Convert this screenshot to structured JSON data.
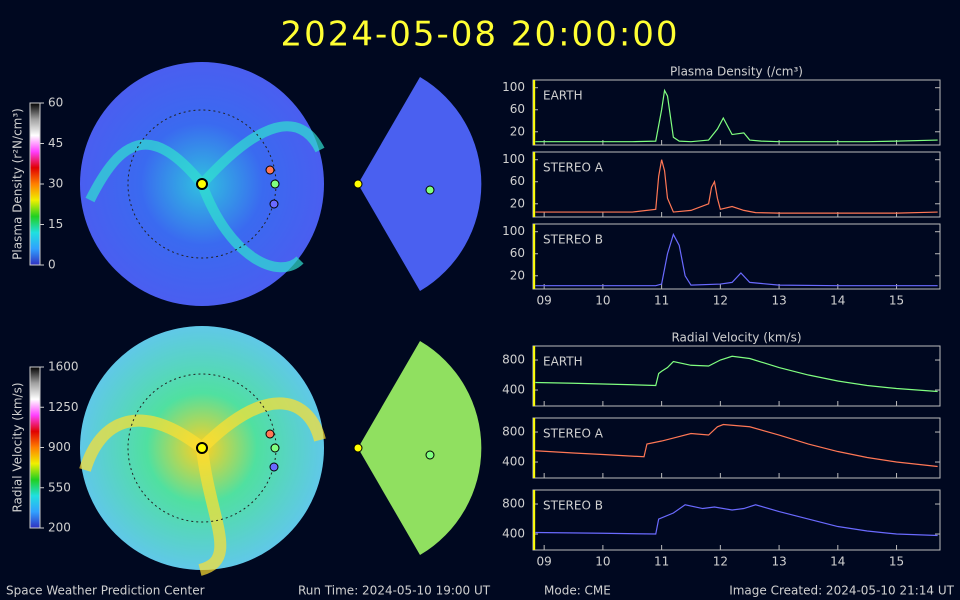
{
  "title": "2024-05-08  20:00:00",
  "footer": {
    "left": "Space Weather Prediction Center",
    "run_time": "Run Time: 2024-05-10 19:00 UT",
    "mode": "Mode: CME",
    "created": "Image Created: 2024-05-10 21:14 UT"
  },
  "colorbars": [
    {
      "label": "Plasma Density (r²N/cm³)",
      "lim": [
        0,
        60
      ],
      "ticks": [
        0,
        15,
        30,
        45,
        60
      ]
    },
    {
      "label": "Radial Velocity (km/s)",
      "lim": [
        200,
        1600
      ],
      "ticks": [
        200,
        550,
        900,
        1250,
        1600
      ]
    }
  ],
  "chart_data": [
    {
      "type": "line",
      "title": "Plasma Density (/cm³)",
      "xlim": [
        8.81,
        15.74
      ],
      "xticks": [
        {
          "value": 9,
          "label": "09"
        },
        10,
        11,
        12,
        13,
        14,
        15
      ],
      "marker_x": 8.83,
      "ylim": [
        -4,
        114
      ],
      "yticks": [
        20,
        60,
        100
      ],
      "series": [
        {
          "name": "EARTH",
          "color": "#80ff80",
          "x": [
            8.85,
            9.5,
            10,
            10.5,
            10.9,
            11.0,
            11.05,
            11.1,
            11.2,
            11.3,
            11.5,
            11.8,
            11.95,
            12.05,
            12.2,
            12.4,
            12.5,
            12.7,
            13,
            13.5,
            14,
            14.5,
            15,
            15.7
          ],
          "values": [
            2,
            2,
            2,
            2,
            3,
            60,
            95,
            85,
            10,
            3,
            2,
            5,
            25,
            45,
            15,
            18,
            5,
            3,
            2,
            2,
            2,
            2,
            3,
            5
          ]
        },
        {
          "name": "STEREO A",
          "color": "#ff7755",
          "x": [
            8.85,
            9.5,
            10,
            10.5,
            10.9,
            10.95,
            11.0,
            11.05,
            11.1,
            11.2,
            11.5,
            11.8,
            11.85,
            11.9,
            11.95,
            12.0,
            12.2,
            12.4,
            12.6,
            13,
            14,
            15,
            15.7
          ],
          "values": [
            5,
            5,
            5,
            5,
            10,
            70,
            100,
            80,
            30,
            5,
            8,
            20,
            50,
            60,
            30,
            10,
            15,
            8,
            4,
            3,
            3,
            3,
            5
          ]
        },
        {
          "name": "STEREO B",
          "color": "#6a6aff",
          "x": [
            8.85,
            10,
            10.9,
            11.0,
            11.1,
            11.2,
            11.3,
            11.4,
            11.5,
            12,
            12.2,
            12.35,
            12.5,
            13,
            14,
            15,
            15.7
          ],
          "values": [
            2,
            2,
            2,
            5,
            60,
            95,
            75,
            20,
            3,
            5,
            8,
            25,
            8,
            3,
            2,
            2,
            2
          ]
        }
      ]
    },
    {
      "type": "line",
      "title": "Radial Velocity (km/s)",
      "xlim": [
        8.81,
        15.74
      ],
      "xticks": [
        {
          "value": 9,
          "label": "09"
        },
        10,
        11,
        12,
        13,
        14,
        15
      ],
      "marker_x": 8.83,
      "ylim": [
        187,
        987
      ],
      "yticks": [
        400,
        800
      ],
      "series": [
        {
          "name": "EARTH",
          "color": "#80ff80",
          "x": [
            8.85,
            9.5,
            10,
            10.5,
            10.9,
            10.95,
            11.0,
            11.1,
            11.2,
            11.5,
            11.8,
            12.0,
            12.2,
            12.5,
            13,
            13.5,
            14,
            14.5,
            15,
            15.7
          ],
          "values": [
            500,
            490,
            480,
            470,
            460,
            620,
            650,
            700,
            780,
            730,
            720,
            800,
            850,
            820,
            700,
            600,
            520,
            460,
            420,
            380
          ]
        },
        {
          "name": "STEREO A",
          "color": "#ff7755",
          "x": [
            8.85,
            9.5,
            10,
            10.7,
            10.75,
            11.0,
            11.2,
            11.5,
            11.8,
            11.95,
            12.05,
            12.5,
            13,
            13.5,
            14,
            14.5,
            15,
            15.7
          ],
          "values": [
            550,
            520,
            500,
            470,
            640,
            680,
            720,
            780,
            760,
            870,
            900,
            870,
            760,
            640,
            540,
            460,
            400,
            340
          ]
        },
        {
          "name": "STEREO B",
          "color": "#6a6aff",
          "x": [
            8.85,
            10,
            10.9,
            10.95,
            11.2,
            11.4,
            11.7,
            11.9,
            12.2,
            12.4,
            12.6,
            13,
            13.5,
            14,
            14.5,
            15,
            15.7
          ],
          "values": [
            420,
            410,
            400,
            600,
            680,
            790,
            740,
            760,
            720,
            740,
            790,
            700,
            600,
            500,
            440,
            400,
            380
          ]
        }
      ]
    }
  ]
}
